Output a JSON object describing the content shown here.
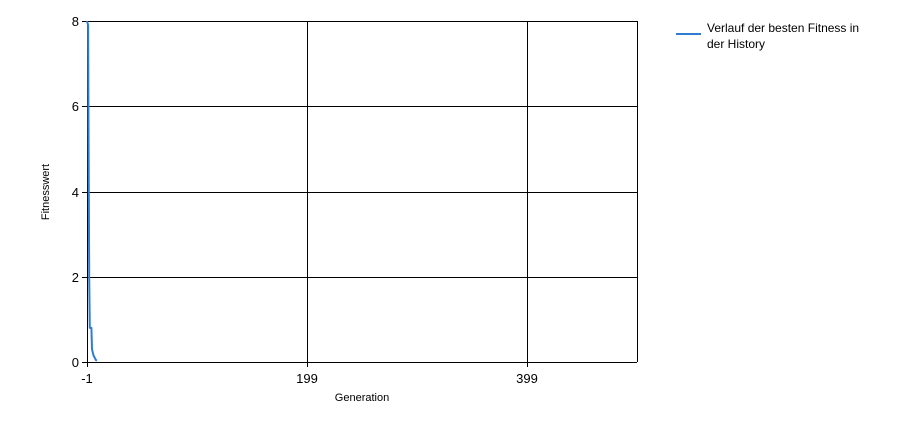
{
  "chart_data": {
    "type": "line",
    "title": "",
    "xlabel": "Generation",
    "ylabel": "Fitnesswert",
    "xlim": [
      -1,
      499
    ],
    "ylim": [
      0,
      8
    ],
    "x_ticks": [
      -1,
      199,
      399
    ],
    "x_tick_labels": [
      "-1",
      "199",
      "399"
    ],
    "y_ticks": [
      0,
      2,
      4,
      6,
      8
    ],
    "y_tick_labels": [
      "0",
      "2",
      "4",
      "6",
      "8"
    ],
    "grid": true,
    "legend_position": "top-right outside",
    "series": [
      {
        "name": "Verlauf der besten Fitness in der History",
        "color": "#2e7dd2",
        "points": [
          [
            -1,
            8.0
          ],
          [
            0,
            7.9
          ],
          [
            0.3,
            6.0
          ],
          [
            0.6,
            4.0
          ],
          [
            1,
            2.0
          ],
          [
            1.5,
            0.8
          ],
          [
            3,
            0.8
          ],
          [
            3.5,
            0.3
          ],
          [
            4.5,
            0.2
          ],
          [
            5,
            0.15
          ],
          [
            6,
            0.1
          ],
          [
            7,
            0.05
          ],
          [
            8,
            0.03
          ]
        ]
      }
    ]
  }
}
